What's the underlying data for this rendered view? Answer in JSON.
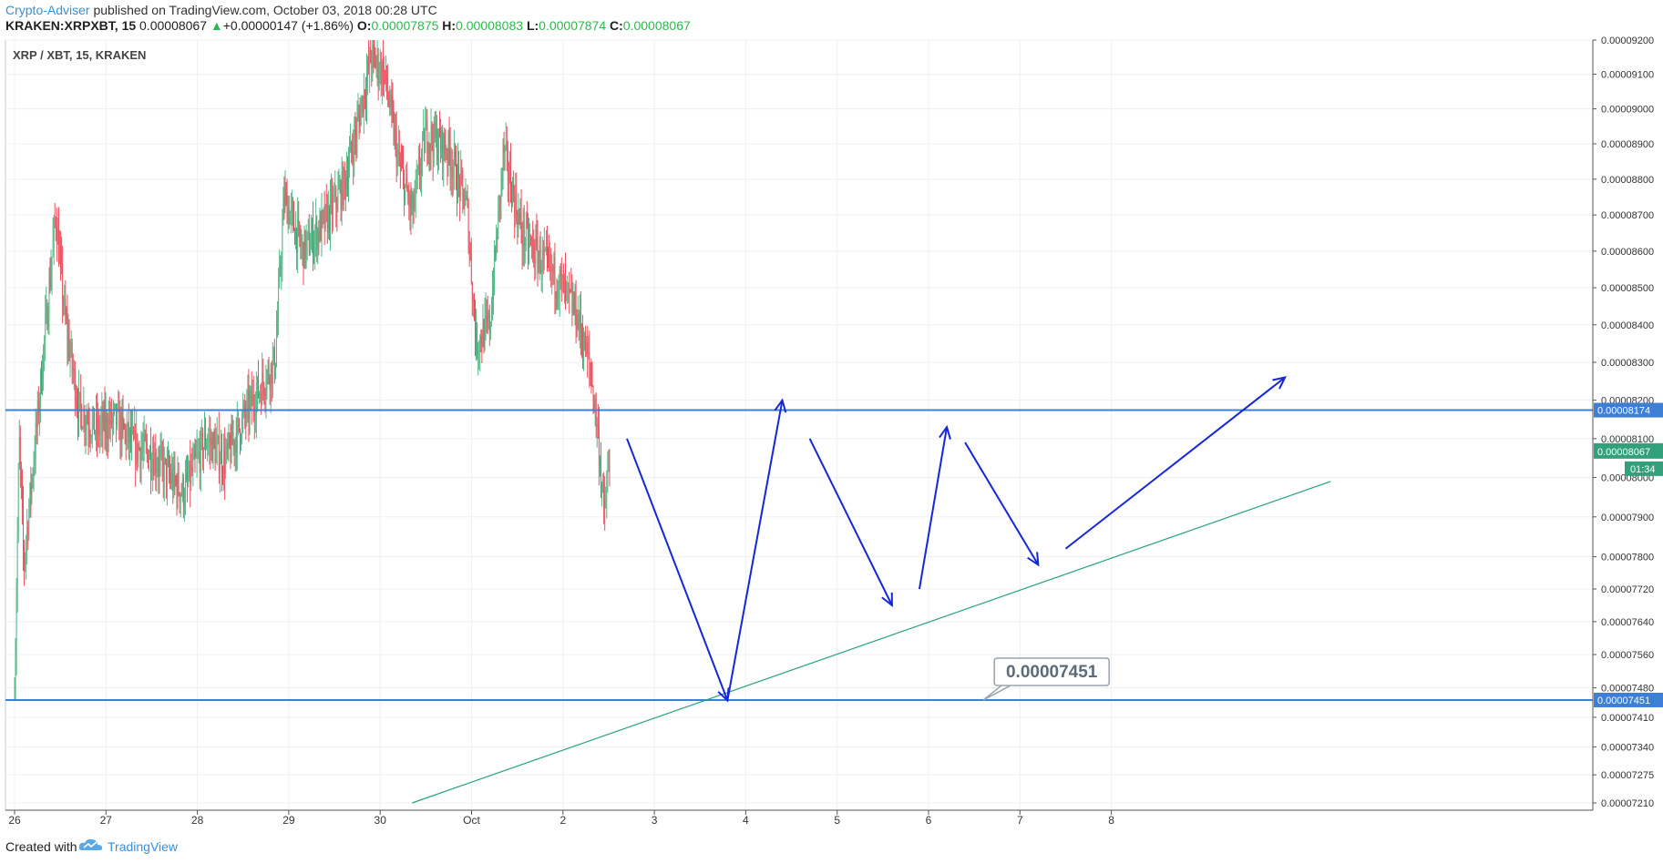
{
  "header": {
    "author": "Crypto-Adviser",
    "published_text": "published on TradingView.com, October 03, 2018 00:28 UTC",
    "symbol": "KRAKEN:XRPXBT, 15",
    "price": "0.00008067",
    "arrow": "▲",
    "change": "+0.00000147 (+1.86%)",
    "open_label": "O:",
    "open": "0.00007875",
    "high_label": "H:",
    "high": "0.00008083",
    "low_label": "L:",
    "low": "0.00007874",
    "close_label": "C:",
    "close": "0.00008067"
  },
  "pane_title": "XRP / XBT, 15, KRAKEN",
  "footer": {
    "created_with": "Created with",
    "brand": "TradingView"
  },
  "colors": {
    "bull": "#53b987",
    "bear": "#eb4d5c",
    "hline": "#3c7fd4",
    "trendline": "#26a17a",
    "arrows": "#1527d6",
    "current_price_bg": "#31a07b"
  },
  "chart_data": {
    "type": "candlestick",
    "title": "XRP / XBT, 15, KRAKEN",
    "x_tick_labels": [
      "26",
      "27",
      "28",
      "29",
      "30",
      "Oct",
      "2",
      "3",
      "4",
      "5",
      "6",
      "7",
      "8"
    ],
    "y_tick_labels": [
      "0.00009200",
      "0.00009100",
      "0.00009000",
      "0.00008900",
      "0.00008800",
      "0.00008700",
      "0.00008600",
      "0.00008500",
      "0.00008400",
      "0.00008300",
      "0.00008200",
      "0.00008100",
      "0.00008000",
      "0.00007900",
      "0.00007800",
      "0.00007720",
      "0.00007640",
      "0.00007560",
      "0.00007480",
      "0.00007410",
      "0.00007340",
      "0.00007275",
      "0.00007210"
    ],
    "ylim": [
      7.21e-05,
      9.2e-05
    ],
    "log_scale": true,
    "price_path": [
      {
        "x": 0.0,
        "y": 7.45e-05
      },
      {
        "x": 0.05,
        "y": 8.1e-05
      },
      {
        "x": 0.1,
        "y": 7.78e-05
      },
      {
        "x": 0.25,
        "y": 8.15e-05
      },
      {
        "x": 0.45,
        "y": 8.7e-05
      },
      {
        "x": 0.55,
        "y": 8.42e-05
      },
      {
        "x": 0.7,
        "y": 8.18e-05
      },
      {
        "x": 0.9,
        "y": 8.12e-05
      },
      {
        "x": 1.1,
        "y": 8.15e-05
      },
      {
        "x": 1.3,
        "y": 8.08e-05
      },
      {
        "x": 1.5,
        "y": 8.06e-05
      },
      {
        "x": 1.7,
        "y": 8e-05
      },
      {
        "x": 1.85,
        "y": 7.96e-05
      },
      {
        "x": 2.1,
        "y": 8.1e-05
      },
      {
        "x": 2.3,
        "y": 8.04e-05
      },
      {
        "x": 2.5,
        "y": 8.15e-05
      },
      {
        "x": 2.75,
        "y": 8.26e-05
      },
      {
        "x": 2.85,
        "y": 8.3e-05
      },
      {
        "x": 2.95,
        "y": 8.75e-05
      },
      {
        "x": 3.15,
        "y": 8.6e-05
      },
      {
        "x": 3.4,
        "y": 8.68e-05
      },
      {
        "x": 3.6,
        "y": 8.78e-05
      },
      {
        "x": 3.75,
        "y": 8.95e-05
      },
      {
        "x": 3.9,
        "y": 9.15e-05
      },
      {
        "x": 4.05,
        "y": 9.1e-05
      },
      {
        "x": 4.2,
        "y": 8.85e-05
      },
      {
        "x": 4.35,
        "y": 8.7e-05
      },
      {
        "x": 4.5,
        "y": 8.93e-05
      },
      {
        "x": 4.75,
        "y": 8.88e-05
      },
      {
        "x": 4.95,
        "y": 8.72e-05
      },
      {
        "x": 5.05,
        "y": 8.35e-05
      },
      {
        "x": 5.2,
        "y": 8.4e-05
      },
      {
        "x": 5.35,
        "y": 8.88e-05
      },
      {
        "x": 5.55,
        "y": 8.65e-05
      },
      {
        "x": 5.75,
        "y": 8.58e-05
      },
      {
        "x": 5.95,
        "y": 8.52e-05
      },
      {
        "x": 6.15,
        "y": 8.43e-05
      },
      {
        "x": 6.3,
        "y": 8.28e-05
      },
      {
        "x": 6.38,
        "y": 8.12e-05
      },
      {
        "x": 6.45,
        "y": 7.9e-05
      },
      {
        "x": 6.52,
        "y": 8.07e-05
      }
    ],
    "price_range": {
      "high": 9.2e-05,
      "low": 7.45e-05
    },
    "horizontal_levels": [
      {
        "label": "0.00008174",
        "value": 8.174e-05
      },
      {
        "label": "0.00007451",
        "value": 7.451e-05
      }
    ],
    "current_price": {
      "label": "0.00008067",
      "value": 8.067e-05,
      "countdown": "01:34"
    },
    "trendline": {
      "x1": 4.35,
      "y1": 7.21e-05,
      "x2": 14.4,
      "y2": 7.99e-05
    },
    "annotation": {
      "label": "0.00007451",
      "x": 10.6,
      "value": 7.451e-05
    },
    "projection_path": [
      {
        "x": 6.7,
        "y": 8.1e-05
      },
      {
        "x": 7.8,
        "y": 7.45e-05
      },
      {
        "x": 8.4,
        "y": 8.2e-05
      },
      {
        "x": 8.7,
        "y": 8.1e-05
      },
      {
        "x": 9.6,
        "y": 7.68e-05
      },
      {
        "x": 9.9,
        "y": 7.72e-05
      },
      {
        "x": 10.2,
        "y": 8.13e-05
      },
      {
        "x": 10.4,
        "y": 8.09e-05
      },
      {
        "x": 11.2,
        "y": 7.78e-05
      },
      {
        "x": 11.5,
        "y": 7.82e-05
      },
      {
        "x": 13.9,
        "y": 8.26e-05
      }
    ]
  }
}
